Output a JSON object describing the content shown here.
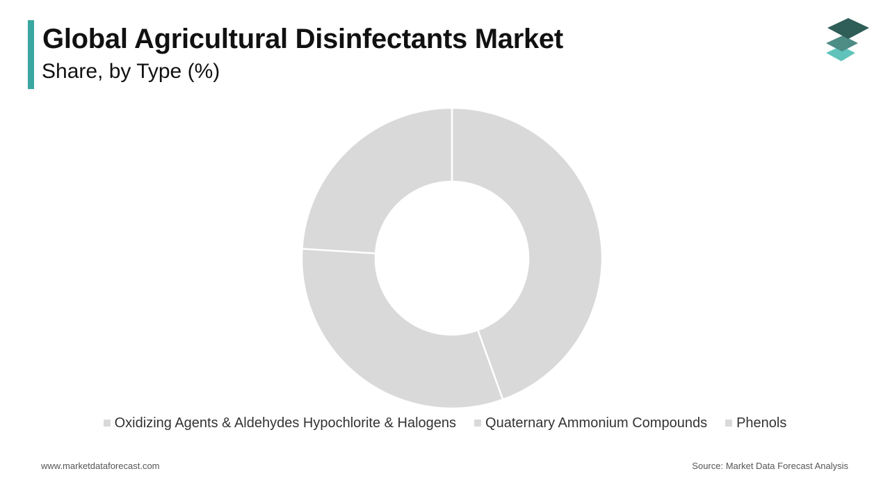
{
  "header": {
    "title": "Global Agricultural Disinfectants Market",
    "subtitle": "Share, by Type (%)"
  },
  "logo": {
    "icon": "stacked-layers-icon",
    "colors": [
      "#2f5d57",
      "#4e8c86",
      "#5fc3bb"
    ]
  },
  "chart_data": {
    "type": "pie",
    "style": "donut",
    "title": "Global Agricultural Disinfectants Market",
    "subtitle": "Share, by Type (%)",
    "legend_position": "bottom",
    "slices": [
      {
        "name": "Oxidizing Agents & Aldehydes Hypochlorite & Halogens",
        "value": 44.5,
        "color": "#d9d9d9"
      },
      {
        "name": "Quaternary Ammonium Compounds",
        "value": 31.5,
        "color": "#d9d9d9"
      },
      {
        "name": "Phenols",
        "value": 24.0,
        "color": "#d9d9d9"
      }
    ],
    "separator_color": "#ffffff"
  },
  "footer": {
    "website": "www.marketdataforecast.com",
    "source": "Source: Market Data Forecast Analysis"
  }
}
